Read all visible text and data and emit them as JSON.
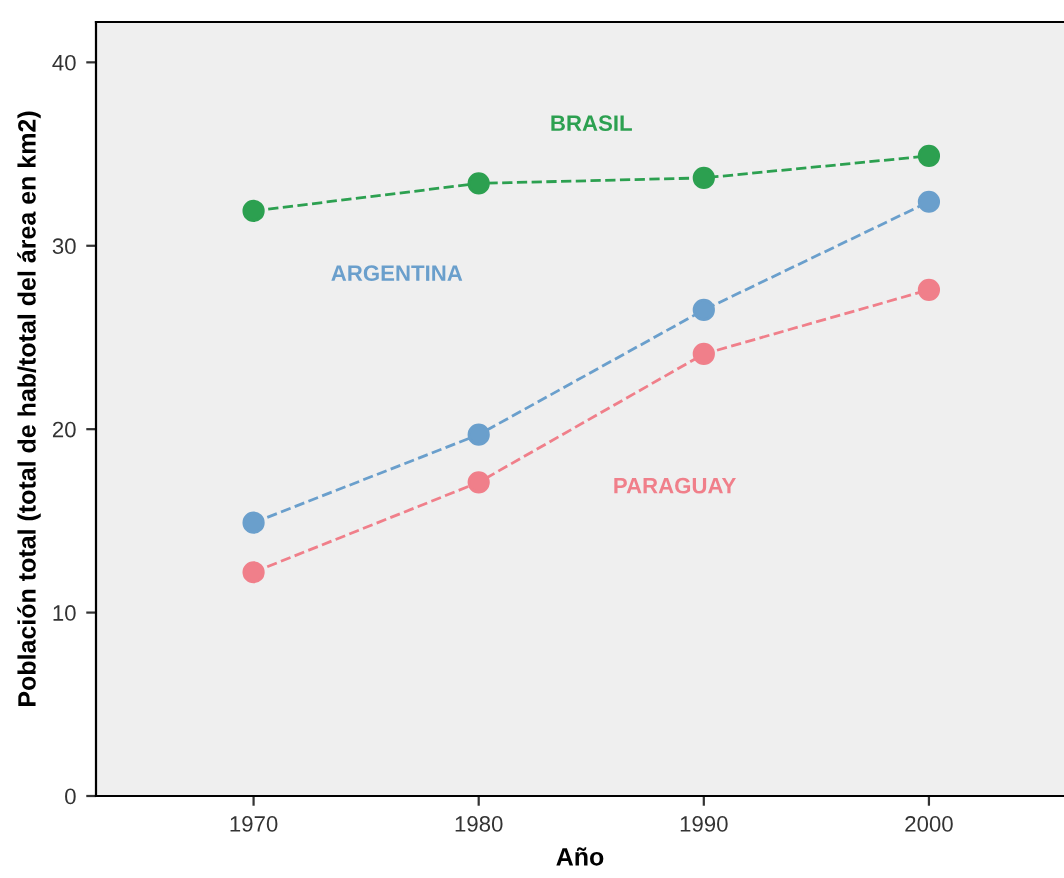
{
  "chart_data": {
    "type": "line",
    "xlabel": "Año",
    "ylabel": "Población total (total de hab/total del área en km2)",
    "x": [
      1970,
      1980,
      1990,
      2000
    ],
    "series": [
      {
        "name": "BRASIL",
        "color": "#2ca050",
        "values": [
          31.9,
          33.4,
          33.7,
          34.9
        ]
      },
      {
        "name": "ARGENTINA",
        "color": "#6a9fcc",
        "values": [
          14.9,
          19.7,
          26.5,
          32.4
        ]
      },
      {
        "name": "PARAGUAY",
        "color": "#f07f8a",
        "values": [
          12.2,
          17.1,
          24.1,
          27.6
        ]
      }
    ],
    "xlim": [
      1963,
      2006
    ],
    "ylim": [
      0,
      42.2
    ],
    "xticks": [
      1970,
      1980,
      1990,
      2000
    ],
    "yticks": [
      0,
      10,
      20,
      30,
      40
    ],
    "grid": false,
    "legend": false,
    "marker": "circle",
    "line_style": "dashed"
  }
}
